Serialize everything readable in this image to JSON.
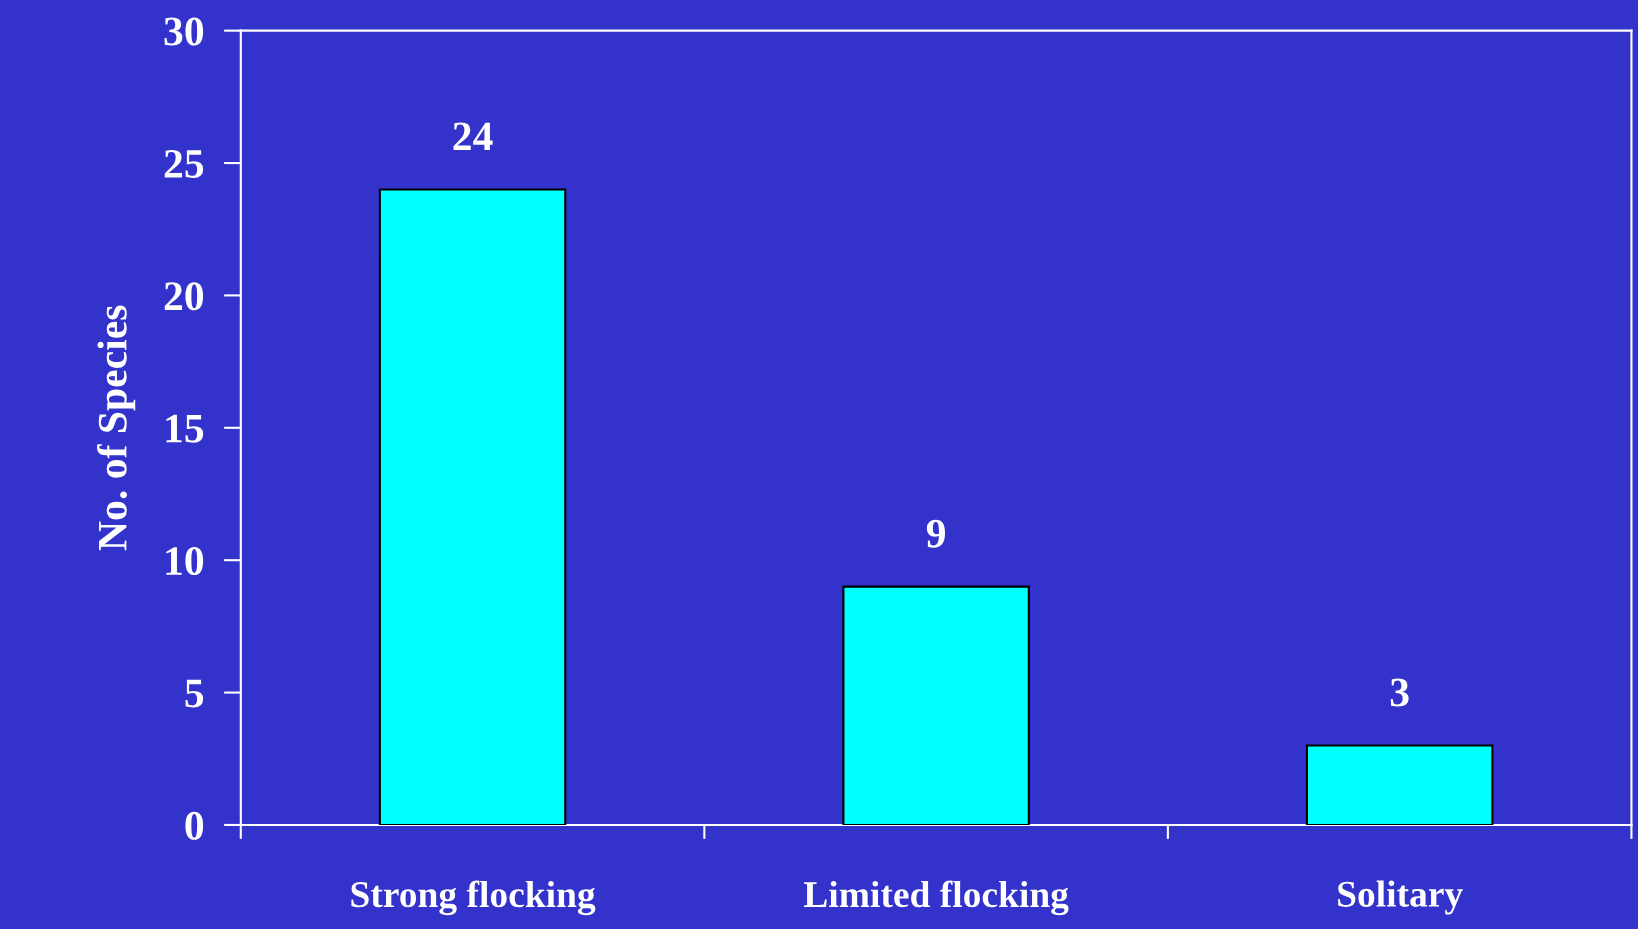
{
  "chart_data": {
    "type": "bar",
    "ylabel": "No. of Species",
    "categories": [
      "Strong flocking",
      "Limited flocking",
      "Solitary"
    ],
    "values": [
      24,
      9,
      3
    ],
    "color": "#00ffff",
    "ylim": [
      0,
      30
    ],
    "yticks": [
      0,
      5,
      10,
      15,
      20,
      25,
      30
    ],
    "grid": false,
    "data_labels": true
  }
}
